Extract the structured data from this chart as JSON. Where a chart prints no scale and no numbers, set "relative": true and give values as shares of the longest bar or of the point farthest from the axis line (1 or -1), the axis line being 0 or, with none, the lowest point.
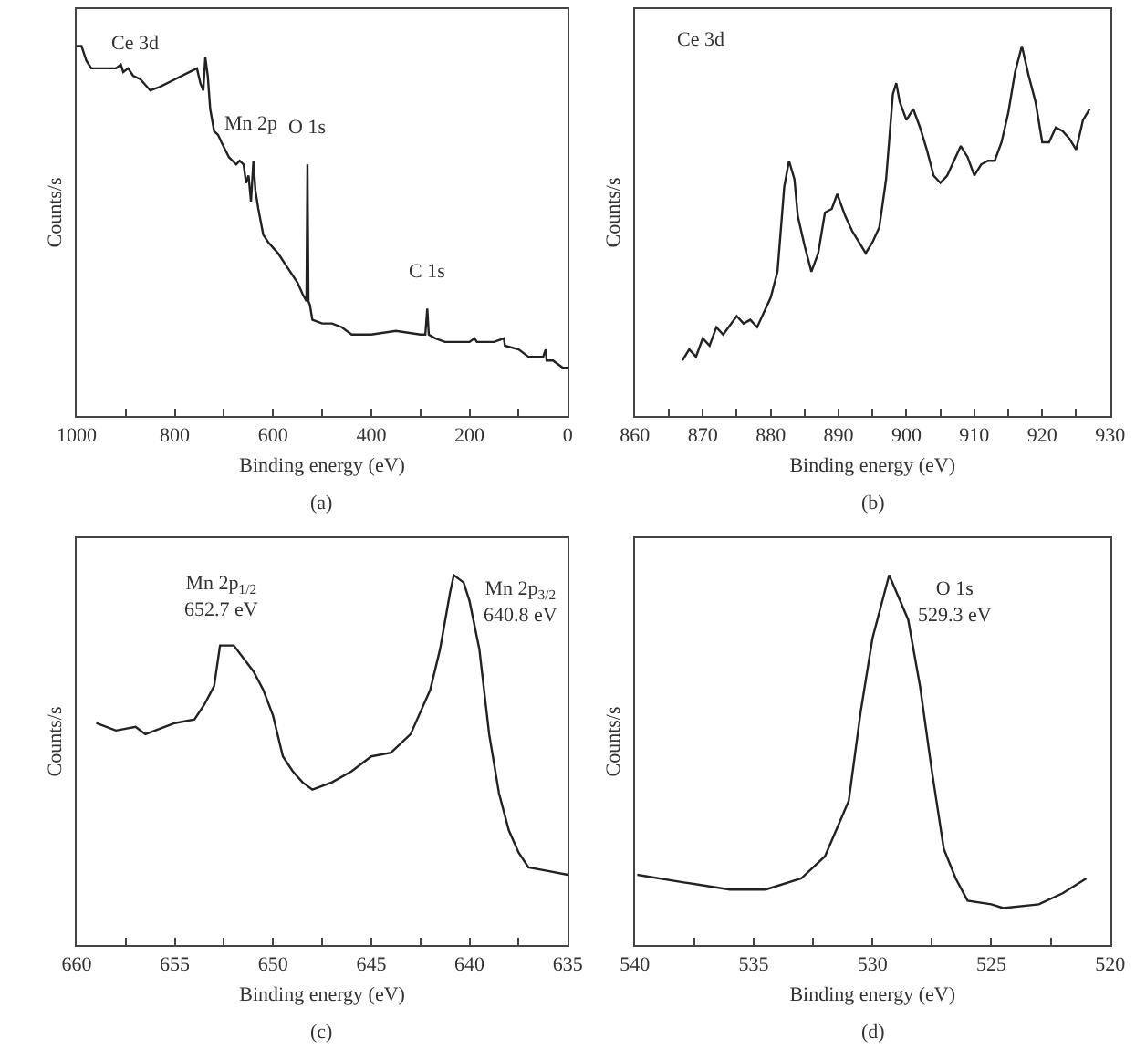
{
  "chart_data": [
    {
      "type": "line",
      "xlabel": "Binding energy (eV)",
      "ylabel": "Counts/s",
      "relative": true,
      "color": "#222222",
      "xlim": [
        1000,
        0
      ],
      "xticks": [
        1000,
        {
          "value": 900,
          "label": null
        },
        800,
        {
          "value": 700,
          "label": null
        },
        600,
        {
          "value": 500,
          "label": null
        },
        400,
        {
          "value": 300,
          "label": null
        },
        200,
        {
          "value": 100,
          "label": null
        },
        0
      ],
      "x": [
        1000,
        990,
        980,
        970,
        950,
        920,
        910,
        905,
        895,
        885,
        870,
        850,
        830,
        800,
        770,
        755,
        748,
        742,
        738,
        733,
        728,
        720,
        712,
        705,
        690,
        675,
        668,
        660,
        655,
        650,
        645,
        640,
        636,
        630,
        620,
        610,
        590,
        570,
        550,
        540,
        532,
        530,
        528,
        525,
        520,
        500,
        480,
        460,
        440,
        400,
        350,
        300,
        290,
        286,
        283,
        270,
        250,
        200,
        190,
        185,
        150,
        130,
        128,
        100,
        80,
        50,
        45,
        43,
        30,
        20,
        10,
        0
      ],
      "values": [
        1.0,
        1.0,
        0.96,
        0.94,
        0.94,
        0.94,
        0.95,
        0.93,
        0.94,
        0.92,
        0.91,
        0.88,
        0.89,
        0.91,
        0.93,
        0.94,
        0.9,
        0.88,
        0.97,
        0.92,
        0.83,
        0.77,
        0.76,
        0.74,
        0.7,
        0.68,
        0.69,
        0.68,
        0.63,
        0.65,
        0.58,
        0.69,
        0.61,
        0.56,
        0.49,
        0.47,
        0.44,
        0.4,
        0.36,
        0.33,
        0.31,
        0.68,
        0.31,
        0.3,
        0.26,
        0.25,
        0.25,
        0.24,
        0.22,
        0.22,
        0.23,
        0.22,
        0.22,
        0.29,
        0.22,
        0.21,
        0.2,
        0.2,
        0.21,
        0.2,
        0.2,
        0.21,
        0.19,
        0.18,
        0.16,
        0.16,
        0.18,
        0.15,
        0.15,
        0.14,
        0.13,
        0.13
      ],
      "annotations": [
        {
          "text": "Ce 3d",
          "x": 880,
          "y": 0.91
        },
        {
          "text": "Mn 2p",
          "x": 645,
          "y": 0.69
        },
        {
          "text": "O 1s",
          "x": 530,
          "y": 0.68
        },
        {
          "text": "C 1s",
          "x": 286,
          "y": 0.29
        },
        "(a)"
      ]
    },
    {
      "type": "line",
      "title": "Ce 3d",
      "xlabel": "Binding energy (eV)",
      "ylabel": "Counts/s",
      "relative": true,
      "color": "#222222",
      "xlim": [
        860,
        930
      ],
      "xticks": [
        860,
        {
          "value": 865,
          "label": null
        },
        870,
        {
          "value": 875,
          "label": null
        },
        880,
        {
          "value": 885,
          "label": null
        },
        890,
        {
          "value": 895,
          "label": null
        },
        900,
        {
          "value": 905,
          "label": null
        },
        910,
        {
          "value": 915,
          "label": null
        },
        920,
        {
          "value": 925,
          "label": null
        },
        930
      ],
      "x": [
        867,
        868,
        869,
        870,
        871,
        872,
        873,
        875,
        876,
        877,
        878,
        879,
        880,
        881,
        882,
        882.7,
        883.5,
        884,
        885,
        886,
        887,
        888,
        889,
        889.8,
        891,
        892,
        893,
        894,
        895,
        896,
        897,
        898,
        898.5,
        899,
        900,
        901,
        902,
        903,
        904,
        905,
        906,
        907,
        908,
        909,
        910,
        911,
        912,
        913,
        914,
        915,
        916,
        917,
        918,
        919,
        920,
        921,
        922,
        923,
        924,
        925,
        926,
        927
      ],
      "values": [
        0.15,
        0.18,
        0.16,
        0.21,
        0.19,
        0.24,
        0.22,
        0.27,
        0.25,
        0.26,
        0.24,
        0.28,
        0.32,
        0.39,
        0.62,
        0.69,
        0.64,
        0.54,
        0.46,
        0.39,
        0.44,
        0.55,
        0.56,
        0.6,
        0.54,
        0.5,
        0.47,
        0.44,
        0.47,
        0.51,
        0.64,
        0.87,
        0.9,
        0.85,
        0.8,
        0.83,
        0.78,
        0.72,
        0.65,
        0.63,
        0.65,
        0.69,
        0.73,
        0.7,
        0.65,
        0.68,
        0.69,
        0.69,
        0.74,
        0.82,
        0.93,
        1.0,
        0.92,
        0.85,
        0.74,
        0.74,
        0.78,
        0.77,
        0.75,
        0.72,
        0.8,
        0.83
      ],
      "annotations": [
        "(b)"
      ]
    },
    {
      "type": "line",
      "xlabel": "Binding energy (eV)",
      "ylabel": "Counts/s",
      "relative": true,
      "color": "#222222",
      "xlim": [
        660,
        635
      ],
      "xticks": [
        660,
        {
          "value": 657.5,
          "label": null
        },
        655,
        {
          "value": 652.5,
          "label": null
        },
        650,
        {
          "value": 647.5,
          "label": null
        },
        645,
        {
          "value": 642.5,
          "label": null
        },
        640,
        {
          "value": 637.5,
          "label": null
        },
        635
      ],
      "x": [
        659,
        658,
        657,
        656.5,
        655,
        654,
        653.5,
        653,
        652.7,
        652,
        651,
        650.5,
        650,
        649.5,
        649,
        648.5,
        648,
        647,
        646,
        645,
        644,
        643,
        642,
        641.5,
        641,
        640.8,
        640.3,
        640,
        639.5,
        639,
        638.5,
        638,
        637.5,
        637,
        636,
        635
      ],
      "values": [
        0.6,
        0.58,
        0.59,
        0.57,
        0.6,
        0.61,
        0.65,
        0.7,
        0.81,
        0.81,
        0.74,
        0.69,
        0.62,
        0.51,
        0.47,
        0.44,
        0.42,
        0.44,
        0.47,
        0.51,
        0.52,
        0.57,
        0.69,
        0.8,
        0.95,
        1.0,
        0.98,
        0.93,
        0.8,
        0.57,
        0.41,
        0.31,
        0.25,
        0.21,
        0.2,
        0.19
      ],
      "annotations": [
        {
          "text": "Mn 2p$_{1/2}$\n652.7 eV",
          "x": 652.7,
          "y": 0.81
        },
        {
          "text": "Mn 2p$_{3/2}$\n640.8 eV",
          "x": 640.8,
          "y": 1.0
        },
        "(c)"
      ]
    },
    {
      "type": "line",
      "xlabel": "Binding energy (eV)",
      "ylabel": "Counts/s",
      "relative": true,
      "color": "#222222",
      "xlim": [
        540,
        520
      ],
      "xticks": [
        540,
        {
          "value": 537.5,
          "label": null
        },
        535,
        {
          "value": 532.5,
          "label": null
        },
        530,
        {
          "value": 527.5,
          "label": null
        },
        525,
        {
          "value": 522.5,
          "label": null
        },
        520
      ],
      "x": [
        539.9,
        538,
        536,
        534.5,
        533,
        532,
        531,
        530.5,
        530,
        529.3,
        528.5,
        528,
        527.5,
        527,
        526.5,
        526,
        525,
        524.5,
        523,
        522,
        521
      ],
      "values": [
        0.19,
        0.17,
        0.15,
        0.15,
        0.18,
        0.24,
        0.39,
        0.63,
        0.83,
        1.0,
        0.88,
        0.7,
        0.47,
        0.26,
        0.18,
        0.12,
        0.11,
        0.1,
        0.11,
        0.14,
        0.18
      ],
      "annotations": [
        {
          "text": "O 1s\n529.3 eV",
          "x": 529.3,
          "y": 1.0
        },
        "(d)"
      ]
    }
  ]
}
